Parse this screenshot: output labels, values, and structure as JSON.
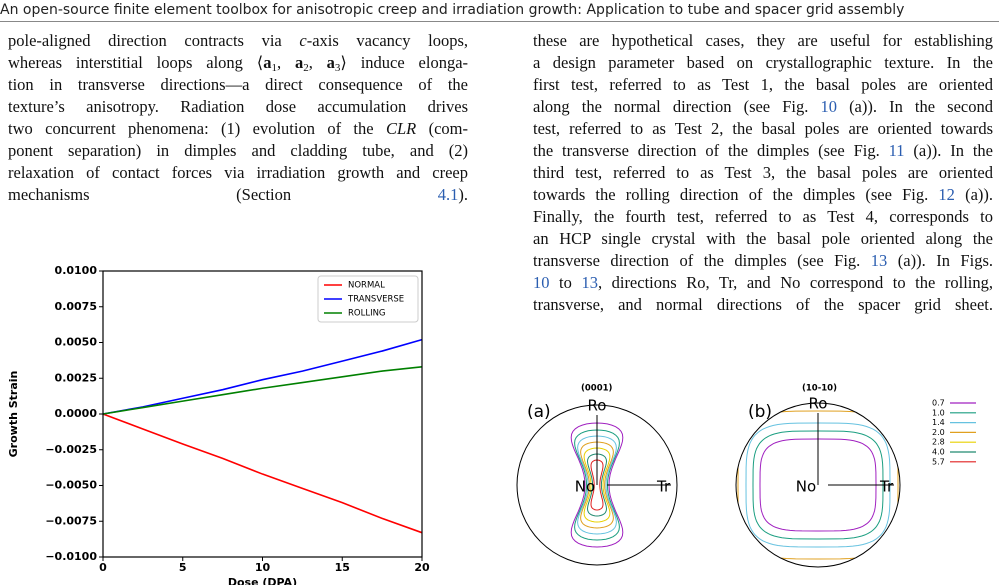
{
  "header": {
    "title": "An open-source finite element toolbox for anisotropic creep and irradiation growth: Application to tube and spacer grid assembly"
  },
  "left_column": {
    "lines": [
      [
        "pole-aligned direction contracts via ",
        {
          "text": "c",
          "style": "italic"
        },
        "-axis vacancy loops,"
      ],
      [
        "whereas interstitial loops along ⟨",
        {
          "text": "a",
          "style": "bold"
        },
        {
          "text": "1",
          "style": "sub"
        },
        ", ",
        {
          "text": "a",
          "style": "bold"
        },
        {
          "text": "2",
          "style": "sub"
        },
        ", ",
        {
          "text": "a",
          "style": "bold"
        },
        {
          "text": "3",
          "style": "sub"
        },
        "⟩ induce elonga-"
      ],
      [
        "tion in transverse directions—a direct consequence of the"
      ],
      [
        "texture’s anisotropy. Radiation dose accumulation drives"
      ],
      [
        "two concurrent phenomena: (1) evolution of the ",
        {
          "text": "CLR",
          "style": "italic"
        },
        " (com-"
      ],
      [
        "ponent separation) in dimples and cladding tube, and (2)"
      ],
      [
        "relaxation of contact forces via irradiation growth and creep"
      ],
      [
        "mechanisms (Section ",
        {
          "text": "4.1",
          "style": "link"
        },
        ")."
      ]
    ]
  },
  "right_column": {
    "lines": [
      [
        "these are hypothetical cases, they are useful for establishing"
      ],
      [
        "a design parameter based on crystallographic texture. In the"
      ],
      [
        "first test, referred to as Test 1, the basal poles are oriented"
      ],
      [
        "along the normal direction (see Fig. ",
        {
          "text": "10",
          "style": "link"
        },
        " (a)). In the second"
      ],
      [
        "test, referred to as Test 2, the basal poles are oriented towards"
      ],
      [
        "the transverse direction of the dimples (see Fig. ",
        {
          "text": "11",
          "style": "link"
        },
        " (a)). In the"
      ],
      [
        "third test, referred to as Test 3, the basal poles are oriented"
      ],
      [
        "towards the rolling direction of the dimples (see Fig. ",
        {
          "text": "12",
          "style": "link"
        },
        " (a))."
      ],
      [
        "Finally, the fourth test, referred to as Test 4, corresponds to"
      ],
      [
        "an HCP single crystal with the basal pole oriented along the"
      ],
      [
        "transverse direction of the dimples (see Fig. ",
        {
          "text": "13",
          "style": "link"
        },
        " (a)). In Figs."
      ],
      [
        {
          "text": "10",
          "style": "link"
        },
        " to ",
        {
          "text": "13",
          "style": "link"
        },
        ", directions Ro, Tr, and No correspond to the rolling,"
      ],
      [
        "transverse, and normal directions of the spacer grid sheet."
      ]
    ]
  },
  "chart_data": {
    "type": "line",
    "x_label": "Dose (DPA)",
    "y_label": "Growth Strain",
    "x": [
      0,
      2.5,
      5,
      7.5,
      10,
      12.5,
      15,
      17.5,
      20
    ],
    "series": [
      {
        "name": "NORMAL",
        "color": "#ff0000",
        "values": [
          0,
          -0.00105,
          -0.0021,
          -0.0031,
          -0.0042,
          -0.0052,
          -0.0062,
          -0.0073,
          -0.0083
        ]
      },
      {
        "name": "TRANSVERSE",
        "color": "#0000ff",
        "values": [
          0,
          0.0005,
          0.0011,
          0.0017,
          0.0024,
          0.003,
          0.0037,
          0.0044,
          0.0052
        ]
      },
      {
        "name": "ROLLING",
        "color": "#008000",
        "values": [
          0,
          0.00045,
          0.0009,
          0.00135,
          0.0018,
          0.0022,
          0.0026,
          0.003,
          0.0033
        ]
      }
    ],
    "xlim": [
      0,
      20
    ],
    "xticks": [
      0,
      5,
      10,
      15,
      20
    ],
    "ylim": [
      -0.01,
      0.01
    ],
    "yticks": [
      {
        "value": 0.01,
        "label": "0.0100"
      },
      {
        "value": 0.0075,
        "label": "0.0075"
      },
      {
        "value": 0.005,
        "label": "0.0050"
      },
      {
        "value": 0.0025,
        "label": "0.0025"
      },
      {
        "value": 0,
        "label": "0.0000"
      },
      {
        "value": -0.0025,
        "label": "−0.0025"
      },
      {
        "value": -0.005,
        "label": "−0.0050"
      },
      {
        "value": -0.0075,
        "label": "−0.0075"
      },
      {
        "value": -0.01,
        "label": "−0.0100"
      }
    ],
    "legend": "upper right"
  },
  "pole_figures": {
    "panels": [
      {
        "label": "(a)",
        "title": "(0001)",
        "axes": {
          "rolling": "Ro",
          "transverse": "Tr",
          "normal": "No"
        }
      },
      {
        "label": "(b)",
        "title": "(10-10)",
        "axes": {
          "rolling": "Ro",
          "transverse": "Tr",
          "normal": "No"
        }
      }
    ],
    "legend": [
      {
        "label": "0.7",
        "color": "#a020c0"
      },
      {
        "label": "1.0",
        "color": "#1a9e80"
      },
      {
        "label": "1.4",
        "color": "#66c2e0"
      },
      {
        "label": "2.0",
        "color": "#e0a020"
      },
      {
        "label": "2.8",
        "color": "#e8d000"
      },
      {
        "label": "4.0",
        "color": "#208a70"
      },
      {
        "label": "5.7",
        "color": "#e02020"
      }
    ]
  }
}
